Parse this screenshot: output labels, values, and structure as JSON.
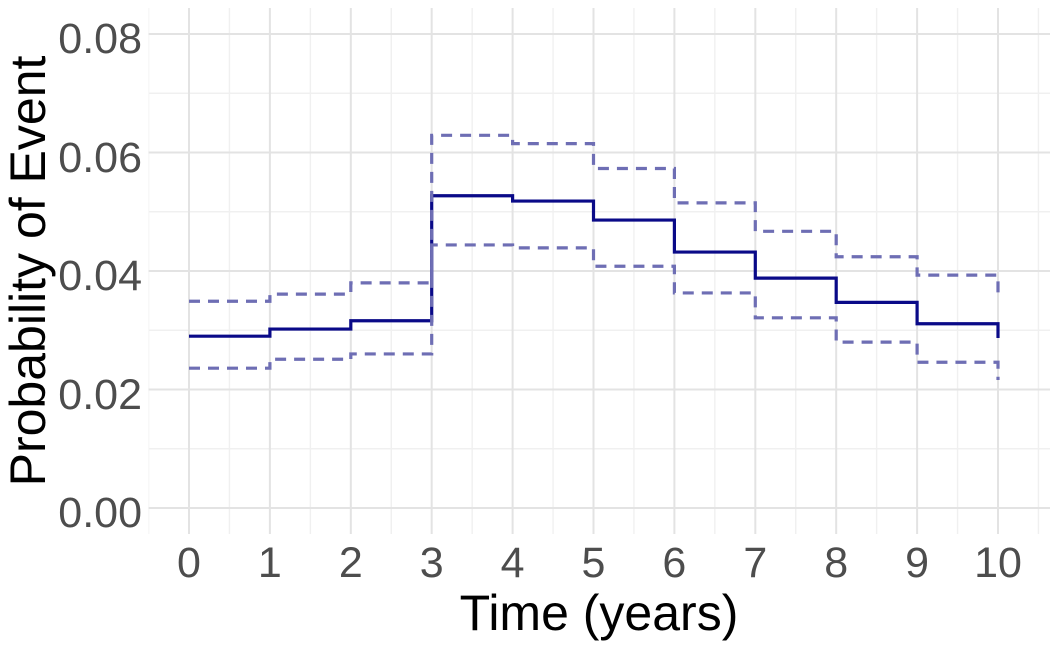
{
  "chart_data": {
    "type": "line",
    "subtype": "step",
    "title": "",
    "xlabel": "Time (years)",
    "ylabel": "Probability of Event",
    "x_tick_labels": [
      "0",
      "1",
      "2",
      "3",
      "4",
      "5",
      "6",
      "7",
      "8",
      "9",
      "10"
    ],
    "x_tick_values": [
      0,
      1,
      2,
      3,
      4,
      5,
      6,
      7,
      8,
      9,
      10
    ],
    "y_tick_labels": [
      "0.00",
      "0.02",
      "0.04",
      "0.06",
      "0.08"
    ],
    "y_tick_values": [
      0.0,
      0.02,
      0.04,
      0.06,
      0.08
    ],
    "xlim": [
      -0.5,
      10.65
    ],
    "ylim": [
      -0.0046,
      0.0844
    ],
    "x_minor_gridlines": [
      -0.5,
      0.5,
      1.5,
      2.5,
      3.5,
      4.5,
      5.5,
      6.5,
      7.5,
      8.5,
      9.5,
      10.5
    ],
    "y_minor_gridlines": [
      0.01,
      0.03,
      0.05,
      0.07
    ],
    "grid": "on",
    "legend": "none",
    "step_start_times": [
      0,
      1,
      2,
      3,
      4,
      5,
      6,
      7,
      8,
      9
    ],
    "series": [
      {
        "name": "estimate",
        "style": "solid",
        "color": "#0a0a88",
        "values": [
          0.029,
          0.0302,
          0.0316,
          0.0527,
          0.0518,
          0.0486,
          0.0432,
          0.0388,
          0.0347,
          0.0311
        ],
        "end_time": 10,
        "end_value": 0.0287
      },
      {
        "name": "upper-confidence-band",
        "style": "dashed",
        "color": "#6e6eb4",
        "values": [
          0.0349,
          0.0361,
          0.038,
          0.0629,
          0.0615,
          0.0573,
          0.0515,
          0.0467,
          0.0424,
          0.0393
        ],
        "end_time": 10,
        "end_value": 0.0363
      },
      {
        "name": "lower-confidence-band",
        "style": "dashed",
        "color": "#6e6eb4",
        "values": [
          0.0236,
          0.0251,
          0.026,
          0.0444,
          0.0439,
          0.0408,
          0.0363,
          0.0321,
          0.028,
          0.0246
        ],
        "end_time": 10,
        "end_value": 0.0216
      }
    ],
    "colors": {
      "background": "#ffffff",
      "major_gridline": "#e3e3e3",
      "minor_gridline": "#f0f0f0",
      "tick_label": "#4d4d4d",
      "axis_title": "#000000"
    }
  }
}
